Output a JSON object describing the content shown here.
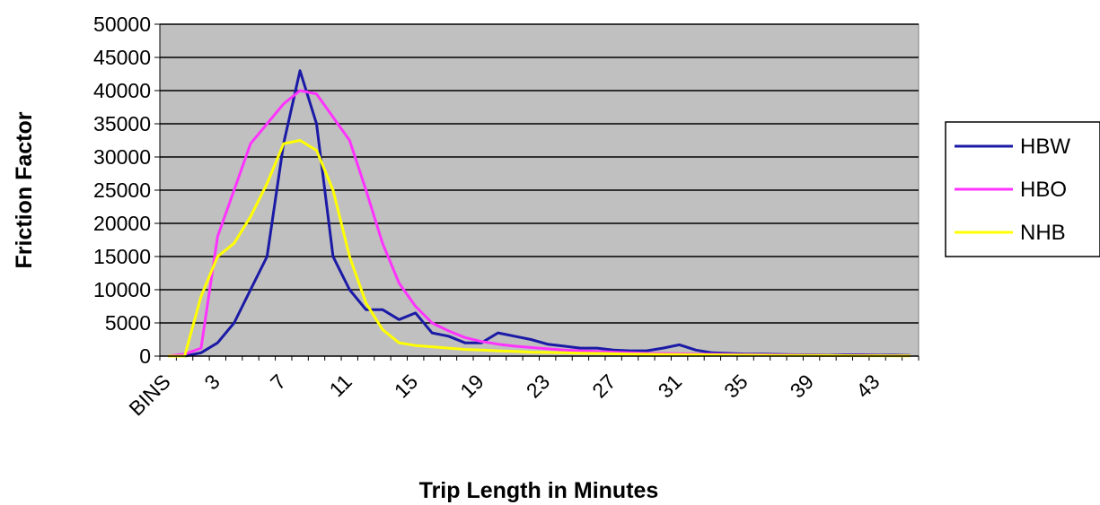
{
  "chart_data": {
    "type": "line",
    "title": "",
    "xlabel": "Trip Length in Minutes",
    "ylabel": "Friction Factor",
    "ylim": [
      0,
      50000
    ],
    "yticks": [
      0,
      5000,
      10000,
      15000,
      20000,
      25000,
      30000,
      35000,
      40000,
      45000,
      50000
    ],
    "x": [
      "BINS",
      "1",
      "2",
      "3",
      "4",
      "5",
      "6",
      "7",
      "8",
      "9",
      "10",
      "11",
      "12",
      "13",
      "14",
      "15",
      "16",
      "17",
      "18",
      "19",
      "20",
      "21",
      "22",
      "23",
      "24",
      "25",
      "26",
      "27",
      "28",
      "29",
      "30",
      "31",
      "32",
      "33",
      "34",
      "35",
      "36",
      "37",
      "38",
      "39",
      "40",
      "41",
      "42",
      "43",
      "44",
      "45"
    ],
    "xtick_labels": [
      "BINS",
      "3",
      "7",
      "11",
      "15",
      "19",
      "23",
      "27",
      "31",
      "35",
      "39",
      "43"
    ],
    "grid": true,
    "legend_position": "right",
    "plot_background": "#c0c0c0",
    "series": [
      {
        "name": "HBW",
        "color": "#1a1aa6",
        "values": [
          0,
          0,
          500,
          2000,
          5000,
          10000,
          15000,
          32000,
          43000,
          35000,
          15000,
          10000,
          7000,
          7000,
          5500,
          6500,
          3500,
          3000,
          2000,
          2000,
          3500,
          3000,
          2500,
          1800,
          1500,
          1200,
          1200,
          900,
          800,
          800,
          1200,
          1700,
          900,
          500,
          400,
          300,
          300,
          250,
          200,
          200,
          150,
          200,
          200,
          150,
          150,
          100
        ]
      },
      {
        "name": "HBO",
        "color": "#ff33ff",
        "values": [
          0,
          300,
          1200,
          18000,
          25000,
          32000,
          35000,
          38000,
          40000,
          39500,
          36000,
          32500,
          25000,
          17000,
          11000,
          7500,
          5000,
          3800,
          2800,
          2200,
          1800,
          1500,
          1300,
          1100,
          900,
          800,
          700,
          600,
          500,
          450,
          400,
          350,
          300,
          280,
          250,
          220,
          200,
          180,
          150,
          130,
          110,
          100,
          90,
          80,
          70,
          60
        ]
      },
      {
        "name": "NHB",
        "color": "#ffff00",
        "values": [
          0,
          0,
          9000,
          15000,
          17000,
          21000,
          26000,
          32000,
          32500,
          31000,
          25000,
          15000,
          8000,
          4000,
          2000,
          1600,
          1400,
          1200,
          1000,
          900,
          800,
          700,
          600,
          550,
          500,
          450,
          400,
          350,
          300,
          280,
          250,
          230,
          210,
          190,
          170,
          150,
          130,
          110,
          100,
          90,
          80,
          70,
          60,
          50,
          40,
          30
        ]
      }
    ]
  }
}
